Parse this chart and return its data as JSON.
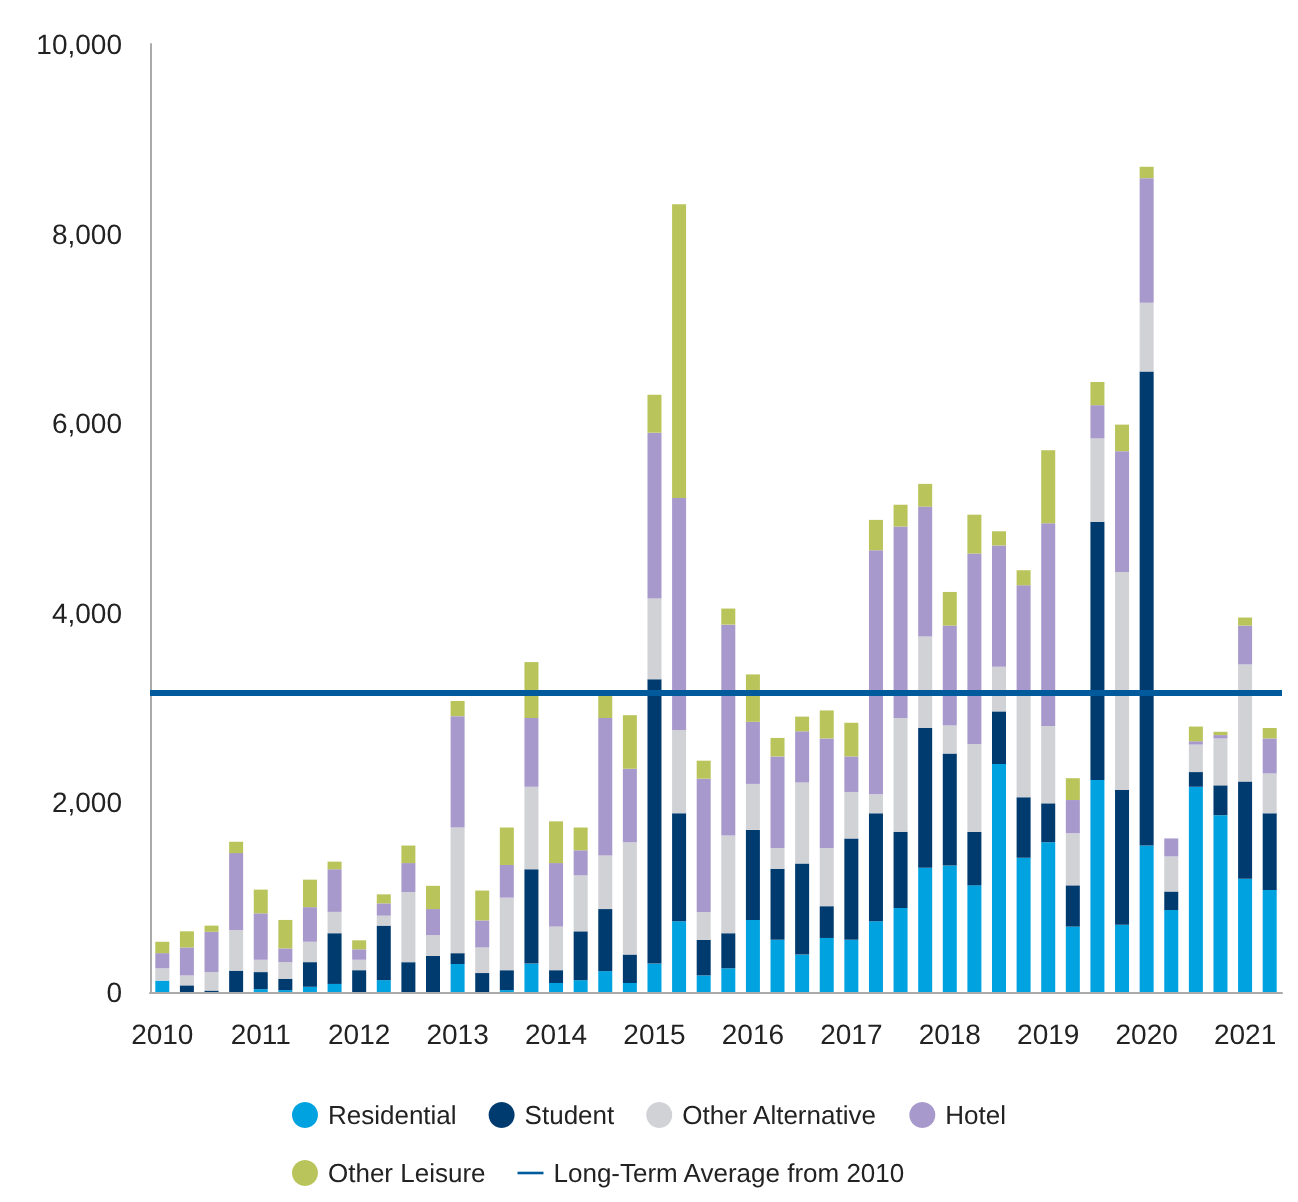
{
  "chart_data": {
    "type": "bar",
    "stacked": true,
    "legend": "bottom",
    "grid": false,
    "categories": [
      "2010",
      null,
      null,
      null,
      "2011",
      null,
      null,
      null,
      "2012",
      null,
      null,
      null,
      "2013",
      null,
      null,
      null,
      "2014",
      null,
      null,
      null,
      "2015",
      null,
      null,
      null,
      "2016",
      null,
      null,
      null,
      "2017",
      null,
      null,
      null,
      "2018",
      null,
      null,
      null,
      "2019",
      null,
      null,
      null,
      "2020",
      null,
      null,
      null,
      "2021",
      null
    ],
    "ylim": [
      0,
      10000
    ],
    "yticks": [
      {
        "value": 0,
        "label": "0"
      },
      {
        "value": 2000,
        "label": "2,000"
      },
      {
        "value": 4000,
        "label": "4,000"
      },
      {
        "value": 6000,
        "label": "6,000"
      },
      {
        "value": 8000,
        "label": "8,000"
      },
      {
        "value": 10000,
        "label": "10,000"
      }
    ],
    "series": [
      {
        "name": "Residential",
        "color": "#00a3e0",
        "values": [
          120,
          0,
          0,
          0,
          30,
          20,
          55,
          85,
          0,
          125,
          0,
          0,
          295,
          0,
          20,
          300,
          95,
          125,
          220,
          95,
          300,
          745,
          175,
          250,
          760,
          550,
          395,
          570,
          550,
          745,
          885,
          1310,
          1335,
          1125,
          2405,
          1415,
          1580,
          690,
          2235,
          710,
          1545,
          865,
          2165,
          1865,
          1195,
          1075
        ]
      },
      {
        "name": "Student",
        "color": "#003b6f",
        "values": [
          0,
          70,
          15,
          225,
          180,
          120,
          260,
          535,
          230,
          575,
          315,
          380,
          115,
          200,
          210,
          995,
          135,
          515,
          655,
          300,
          3000,
          1140,
          375,
          370,
          950,
          750,
          960,
          335,
          1070,
          1140,
          805,
          1475,
          1180,
          565,
          555,
          640,
          410,
          435,
          2725,
          1420,
          5000,
          195,
          155,
          315,
          1025,
          810
        ]
      },
      {
        "name": "Other Alternative",
        "color": "#d0d2d6",
        "values": [
          130,
          105,
          195,
          430,
          130,
          175,
          215,
          225,
          110,
          105,
          740,
          220,
          1325,
          270,
          765,
          870,
          460,
          590,
          565,
          1185,
          850,
          880,
          295,
          1030,
          485,
          220,
          855,
          615,
          490,
          200,
          1200,
          965,
          295,
          925,
          470,
          1095,
          815,
          550,
          880,
          2300,
          725,
          370,
          290,
          495,
          1235,
          420
        ]
      },
      {
        "name": "Hotel",
        "color": "#a899cc",
        "values": [
          160,
          295,
          425,
          810,
          490,
          145,
          365,
          450,
          110,
          130,
          305,
          275,
          1175,
          285,
          345,
          725,
          670,
          265,
          1450,
          775,
          1750,
          2445,
          1405,
          2225,
          655,
          965,
          540,
          1155,
          375,
          2575,
          2020,
          1370,
          1055,
          2010,
          1280,
          1140,
          2140,
          350,
          350,
          1275,
          1315,
          190,
          35,
          35,
          410,
          370
        ]
      },
      {
        "name": "Other Leisure",
        "color": "#b9c45a",
        "values": [
          120,
          170,
          65,
          120,
          250,
          300,
          290,
          80,
          95,
          95,
          185,
          245,
          160,
          315,
          395,
          590,
          440,
          240,
          260,
          565,
          400,
          3100,
          190,
          170,
          500,
          195,
          155,
          295,
          355,
          320,
          230,
          240,
          355,
          410,
          150,
          160,
          770,
          230,
          245,
          280,
          120,
          0,
          155,
          35,
          85,
          110
        ]
      }
    ],
    "ref_lines": [
      {
        "axis": "y",
        "value": 3150,
        "label": "Long-Term Average from 2010",
        "color": "#005a9c",
        "line_style": "solid"
      }
    ]
  }
}
